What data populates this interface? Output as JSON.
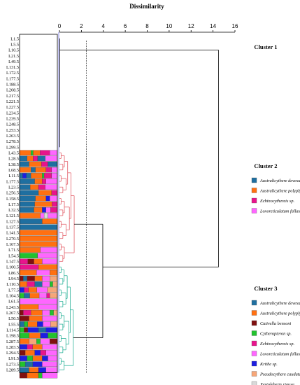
{
  "chart_data": {
    "type": "dendrogram",
    "title": "Dissimilarity",
    "xlim": [
      0,
      16
    ],
    "x_ticks": [
      0,
      2,
      4,
      6,
      8,
      10,
      12,
      14,
      16
    ],
    "x_tick_labels": [
      "0",
      "2",
      "4",
      "6",
      "8",
      "10",
      "12",
      "14",
      "16"
    ],
    "cut_lines": [
      2.45
    ],
    "colors": {
      "Australicythere devexa": "#1f6fa0",
      "Australicythere polyplyca": "#ff7011",
      "Cativella bensoni": "#7f1010",
      "Cytheropteron sp.": "#22c22e",
      "Echinocythereis sp.": "#e8148c",
      "Loxoreticulatum fallax": "#ff66ff",
      "Krithe sp.": "#1e1ee0",
      "Pseudocythere caudata": "#f6a678",
      "Xestoleberis rigusa": "#d9d9d9",
      "cluster2_links": "#e4606a",
      "cluster3_links": "#2db39a",
      "cluster1_links": "#000000"
    },
    "samples": [
      "L1.5",
      "L5.5",
      "L10.5",
      "L21.5",
      "L49.5",
      "L131.5",
      "L172.5",
      "L177.5",
      "L188.5",
      "L208.5",
      "L217.5",
      "L221.5",
      "L227.5",
      "L234.5",
      "L239.5",
      "L248.5",
      "L253.5",
      "L263.5",
      "L278.5",
      "L299.5",
      "L43.5",
      "L28.5",
      "L38.5",
      "L68.5",
      "L11.5",
      "L177.5",
      "L23.5",
      "L256.5",
      "L158.5",
      "L17.5",
      "L32.5",
      "L121.5",
      "L127.5",
      "L137.5",
      "L141.5",
      "L270.5",
      "L167.5",
      "L71.5",
      "L54.5",
      "L147.5",
      "L100.5",
      "L86.5",
      "L94.5",
      "L110.5",
      "L77.5",
      "L104.5",
      "L61.5",
      "L243.5",
      "L267.5",
      "L50.5",
      "L55.5",
      "L114.5",
      "L198.5",
      "L287.5",
      "L283.5",
      "L294.5",
      "L91.5",
      "L273.5",
      "L289.5"
    ],
    "clusters": [
      {
        "name": "Cluster 1",
        "legend": []
      },
      {
        "name": "Cluster 2",
        "legend": [
          "Australicythere devexa",
          "Australicythere polyplyca",
          "Echinocythereis sp.",
          "Loxoreticulatum fallax"
        ]
      },
      {
        "name": "Cluster 3",
        "legend": [
          "Australicythere devexa",
          "Australicythere polyplyca",
          "Cativella bensoni",
          "Cytheropteron sp.",
          "Echinocythereis sp.",
          "Loxoreticulatum fallax",
          "Krithe sp.",
          "Pseudocythere caudata",
          "Xestoleberis rigusa"
        ]
      }
    ],
    "composition_bars": [
      [
        [
          "Australicythere polyplyca",
          0.3
        ],
        [
          "Cytheropteron sp.",
          0.06
        ],
        [
          "Australicythere polyplyca",
          0.18
        ],
        [
          "Echinocythereis sp.",
          0.26
        ],
        [
          "Loxoreticulatum fallax",
          0.2
        ]
      ],
      [
        [
          "Australicythere devexa",
          0.2
        ],
        [
          "Australicythere polyplyca",
          0.16
        ],
        [
          "Echinocythereis sp.",
          0.12
        ],
        [
          "Australicythere devexa",
          0.2
        ],
        [
          "Loxoreticulatum fallax",
          0.32
        ]
      ],
      [
        [
          "Australicythere devexa",
          0.25
        ],
        [
          "Australicythere polyplyca",
          0.33
        ],
        [
          "Echinocythereis sp.",
          0.17
        ],
        [
          "Australicythere devexa",
          0.25
        ]
      ],
      [
        [
          "Australicythere polyplyca",
          0.3
        ],
        [
          "Australicythere devexa",
          0.12
        ],
        [
          "Australicythere polyplyca",
          0.28
        ],
        [
          "Echinocythereis sp.",
          0.15
        ],
        [
          "Loxoreticulatum fallax",
          0.15
        ]
      ],
      [
        [
          "Australicythere devexa",
          0.08
        ],
        [
          "Krithe sp.",
          0.1
        ],
        [
          "Australicythere devexa",
          0.12
        ],
        [
          "Australicythere polyplyca",
          0.3
        ],
        [
          "Cytheropteron sp.",
          0.05
        ],
        [
          "Echinocythereis sp.",
          0.2
        ],
        [
          "Loxoreticulatum fallax",
          0.15
        ]
      ],
      [
        [
          "Australicythere devexa",
          0.4
        ],
        [
          "Australicythere polyplyca",
          0.2
        ],
        [
          "Echinocythereis sp.",
          0.1
        ],
        [
          "Loxoreticulatum fallax",
          0.3
        ]
      ],
      [
        [
          "Australicythere devexa",
          0.28
        ],
        [
          "Australicythere polyplyca",
          0.22
        ],
        [
          "Echinocythereis sp.",
          0.18
        ],
        [
          "Loxoreticulatum fallax",
          0.32
        ]
      ],
      [
        [
          "Australicythere devexa",
          0.5
        ],
        [
          "Australicythere polyplyca",
          0.35
        ],
        [
          "Echinocythereis sp.",
          0.15
        ]
      ],
      [
        [
          "Australicythere devexa",
          0.42
        ],
        [
          "Australicythere polyplyca",
          0.28
        ],
        [
          "Krithe sp.",
          0.1
        ],
        [
          "Loxoreticulatum fallax",
          0.2
        ]
      ],
      [
        [
          "Australicythere devexa",
          0.4
        ],
        [
          "Australicythere polyplyca",
          0.46
        ],
        [
          "Echinocythereis sp.",
          0.14
        ]
      ],
      [
        [
          "Australicythere devexa",
          0.38
        ],
        [
          "Australicythere polyplyca",
          0.22
        ],
        [
          "Krithe sp.",
          0.1
        ],
        [
          "Loxoreticulatum fallax",
          0.12
        ],
        [
          "Echinocythereis sp.",
          0.18
        ]
      ],
      [
        [
          "Australicythere polyplyca",
          0.55
        ],
        [
          "Loxoreticulatum fallax",
          0.1
        ],
        [
          "Xestoleberis rigusa",
          0.1
        ],
        [
          "Loxoreticulatum fallax",
          0.25
        ]
      ],
      [
        [
          "Australicythere devexa",
          0.6
        ],
        [
          "Australicythere polyplyca",
          0.4
        ]
      ],
      [
        [
          "Australicythere devexa",
          1.0
        ]
      ],
      [
        [
          "Australicythere polyplyca",
          1.0
        ]
      ],
      [
        [
          "Australicythere polyplyca",
          1.0
        ]
      ],
      [
        [
          "Australicythere polyplyca",
          1.0
        ]
      ],
      [
        [
          "Australicythere polyplyca",
          0.55
        ],
        [
          "Loxoreticulatum fallax",
          0.45
        ]
      ],
      [
        [
          "Cytheropteron sp.",
          0.48
        ],
        [
          "Loxoreticulatum fallax",
          0.52
        ]
      ],
      [
        [
          "Echinocythereis sp.",
          0.22
        ],
        [
          "Cativella bensoni",
          0.16
        ],
        [
          "Australicythere polyplyca",
          0.22
        ],
        [
          "Loxoreticulatum fallax",
          0.4
        ]
      ],
      [
        [
          "Echinocythereis sp.",
          0.5
        ],
        [
          "Australicythere polyplyca",
          0.5
        ]
      ],
      [
        [
          "Australicythere polyplyca",
          0.45
        ],
        [
          "Loxoreticulatum fallax",
          0.35
        ],
        [
          "Australicythere polyplyca",
          0.2
        ]
      ],
      [
        [
          "Cativella bensoni",
          0.1
        ],
        [
          "Australicythere devexa",
          0.1
        ],
        [
          "Cativella bensoni",
          0.2
        ],
        [
          "Australicythere polyplyca",
          0.2
        ],
        [
          "Loxoreticulatum fallax",
          0.2
        ],
        [
          "Pseudocythere caudata",
          0.2
        ]
      ],
      [
        [
          "Australicythere polyplyca",
          0.2
        ],
        [
          "Echinocythereis sp.",
          0.2
        ],
        [
          "Australicythere devexa",
          0.2
        ],
        [
          "Loxoreticulatum fallax",
          0.2
        ],
        [
          "Cytheropteron sp.",
          0.08
        ],
        [
          "Pseudocythere caudata",
          0.12
        ]
      ],
      [
        [
          "Krithe sp.",
          0.12
        ],
        [
          "Echinocythereis sp.",
          0.12
        ],
        [
          "Australicythere polyplyca",
          0.22
        ],
        [
          "Loxoreticulatum fallax",
          0.28
        ],
        [
          "Pseudocythere caudata",
          0.26
        ]
      ],
      [
        [
          "Cytheropteron sp.",
          0.12
        ],
        [
          "Australicythere devexa",
          0.15
        ],
        [
          "Australicythere polyplyca",
          0.25
        ],
        [
          "Loxoreticulatum fallax",
          0.2
        ],
        [
          "Echinocythereis sp.",
          0.08
        ],
        [
          "Pseudocythere caudata",
          0.2
        ]
      ],
      [
        [
          "Loxoreticulatum fallax",
          1.0
        ]
      ],
      [
        [
          "Australicythere polyplyca",
          0.5
        ],
        [
          "Loxoreticulatum fallax",
          0.5
        ]
      ],
      [
        [
          "Cativella bensoni",
          0.1
        ],
        [
          "Echinocythereis sp.",
          0.2
        ],
        [
          "Australicythere polyplyca",
          0.3
        ],
        [
          "Loxoreticulatum fallax",
          0.2
        ],
        [
          "Cytheropteron sp.",
          0.1
        ],
        [
          "Pseudocythere caudata",
          0.1
        ]
      ],
      [
        [
          "Cativella bensoni",
          0.25
        ],
        [
          "Australicythere polyplyca",
          0.35
        ],
        [
          "Loxoreticulatum fallax",
          0.4
        ]
      ],
      [
        [
          "Australicythere devexa",
          0.12
        ],
        [
          "Cytheropteron sp.",
          0.1
        ],
        [
          "Australicythere polyplyca",
          0.25
        ],
        [
          "Krithe sp.",
          0.15
        ],
        [
          "Loxoreticulatum fallax",
          0.2
        ],
        [
          "Pseudocythere caudata",
          0.18
        ]
      ],
      [
        [
          "Cytheropteron sp.",
          0.12
        ],
        [
          "Cativella bensoni",
          0.1
        ],
        [
          "Krithe sp.",
          0.28
        ],
        [
          "Australicythere devexa",
          0.2
        ],
        [
          "Krithe sp.",
          0.3
        ]
      ],
      [
        [
          "Cytheropteron sp.",
          0.25
        ],
        [
          "Australicythere polyplyca",
          0.3
        ],
        [
          "Krithe sp.",
          0.2
        ],
        [
          "Cytheropteron sp.",
          0.25
        ]
      ],
      [
        [
          "Australicythere polyplyca",
          0.25
        ],
        [
          "Pseudocythere caudata",
          0.2
        ],
        [
          "Cytheropteron sp.",
          0.1
        ],
        [
          "Loxoreticulatum fallax",
          0.25
        ],
        [
          "Cativella bensoni",
          0.2
        ]
      ],
      [
        [
          "Krithe sp.",
          0.2
        ],
        [
          "Echinocythereis sp.",
          0.15
        ],
        [
          "Australicythere polyplyca",
          0.25
        ],
        [
          "Loxoreticulatum fallax",
          0.4
        ]
      ],
      [
        [
          "Cativella bensoni",
          0.15
        ],
        [
          "Australicythere polyplyca",
          0.25
        ],
        [
          "Krithe sp.",
          0.15
        ],
        [
          "Echinocythereis sp.",
          0.15
        ],
        [
          "Loxoreticulatum fallax",
          0.3
        ]
      ],
      [
        [
          "Krithe sp.",
          0.2
        ],
        [
          "Cytheropteron sp.",
          0.15
        ],
        [
          "Australicythere polyplyca",
          0.25
        ],
        [
          "Krithe sp.",
          0.15
        ],
        [
          "Loxoreticulatum fallax",
          0.25
        ]
      ],
      [
        [
          "Cytheropteron sp.",
          0.15
        ],
        [
          "Australicythere devexa",
          0.2
        ],
        [
          "Krithe sp.",
          0.25
        ],
        [
          "Loxoreticulatum fallax",
          0.4
        ]
      ],
      [
        [
          "Australicythere devexa",
          0.25
        ],
        [
          "Australicythere polyplyca",
          0.25
        ],
        [
          "Krithe sp.",
          0.2
        ],
        [
          "Loxoreticulatum fallax",
          0.3
        ]
      ],
      [
        [
          "Cativella bensoni",
          0.2
        ],
        [
          "Australicythere polyplyca",
          0.3
        ],
        [
          "Cytheropteron sp.",
          0.1
        ],
        [
          "Loxoreticulatum fallax",
          0.4
        ]
      ]
    ]
  }
}
